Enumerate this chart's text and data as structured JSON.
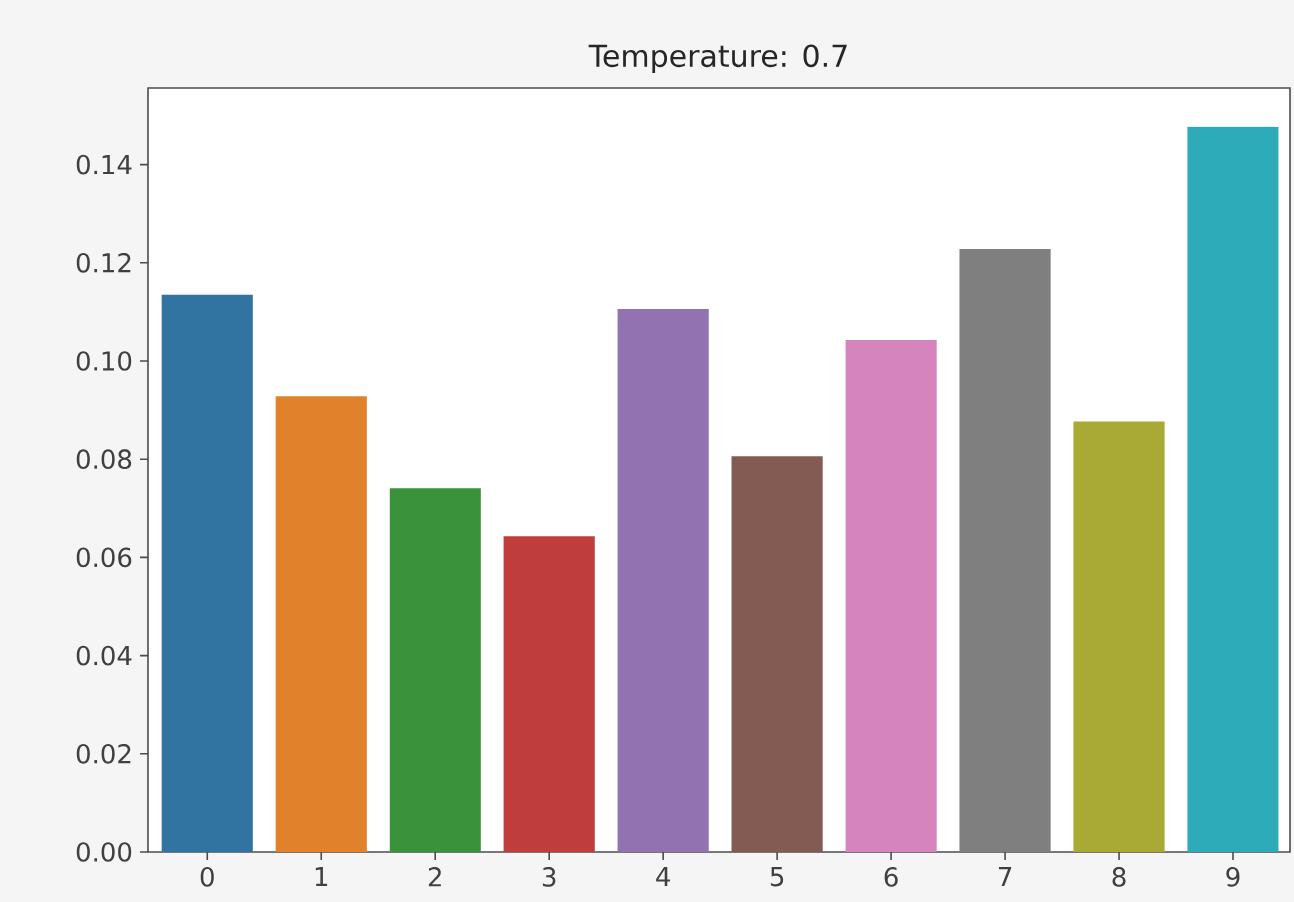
{
  "chart_data": {
    "type": "bar",
    "title": "Temperature: 0.7",
    "categories": [
      "0",
      "1",
      "2",
      "3",
      "4",
      "5",
      "6",
      "7",
      "8",
      "9"
    ],
    "values": [
      0.1135,
      0.0928,
      0.0741,
      0.0643,
      0.1106,
      0.0806,
      0.1043,
      0.1228,
      0.0877,
      0.1477
    ],
    "colors": [
      "#3274a1",
      "#e1812c",
      "#3a923a",
      "#c03d3e",
      "#9372b2",
      "#845b53",
      "#d684bd",
      "#7f7f7f",
      "#a9aa35",
      "#2eabb8"
    ],
    "ylim": [
      0,
      0.1556
    ],
    "yticks": [
      {
        "value": 0,
        "label": "0.00"
      },
      0.02,
      0.04,
      0.06,
      0.08,
      {
        "value": 0.1,
        "label": "0.10"
      },
      0.12,
      0.14
    ],
    "grid": false
  }
}
